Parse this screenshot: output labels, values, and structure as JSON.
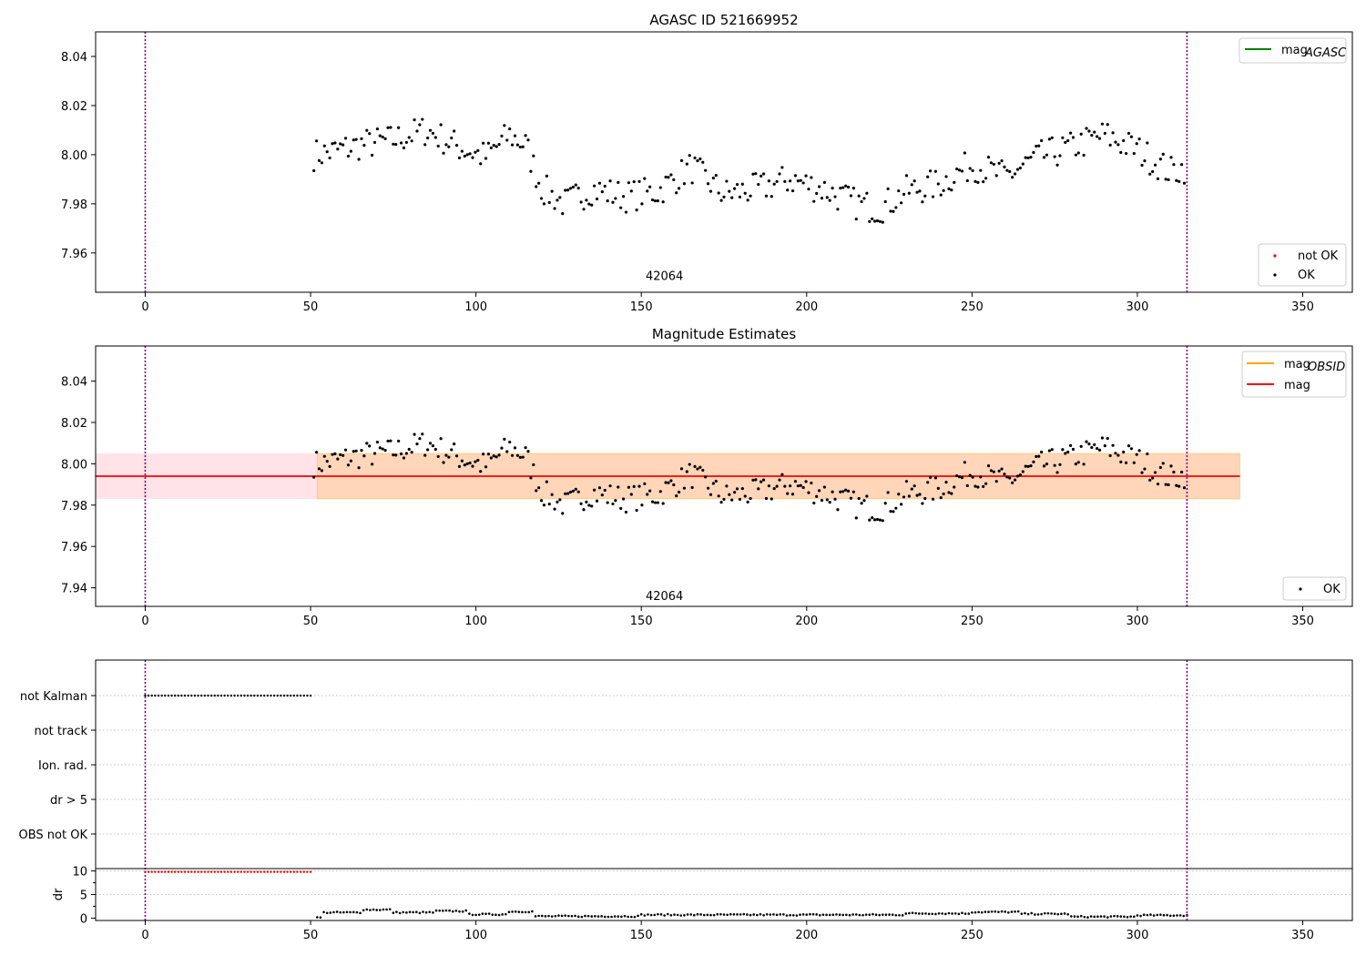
{
  "chart_data": [
    {
      "type": "scatter",
      "title": "AGASC ID 521669952",
      "xlim": [
        -15,
        365
      ],
      "ylim": [
        7.944,
        8.05
      ],
      "xticks": [
        0,
        50,
        100,
        150,
        200,
        250,
        300,
        350
      ],
      "yticks": [
        7.96,
        7.98,
        8.0,
        8.02,
        8.04
      ],
      "ytick_labels": [
        "7.96",
        "7.98",
        "8.00",
        "8.02",
        "8.04"
      ],
      "vlines": [
        0,
        315
      ],
      "annotation": {
        "text": "42064",
        "x": 157,
        "y": 7.949
      },
      "legend_lines": [
        {
          "label": "mag",
          "sub": "AGASC",
          "color": "#008000"
        }
      ],
      "legend_points": [
        {
          "label": "not OK",
          "color": "#ff0000"
        },
        {
          "label": "OK",
          "color": "#000000"
        }
      ],
      "series": [
        {
          "name": "OK",
          "color": "#000000",
          "x": [],
          "y": []
        }
      ]
    },
    {
      "type": "scatter",
      "title": "Magnitude Estimates",
      "xlim": [
        -15,
        365
      ],
      "ylim": [
        7.931,
        8.057
      ],
      "xticks": [
        0,
        50,
        100,
        150,
        200,
        250,
        300,
        350
      ],
      "yticks": [
        7.94,
        7.96,
        7.98,
        8.0,
        8.02,
        8.04
      ],
      "ytick_labels": [
        "7.94",
        "7.96",
        "7.98",
        "8.00",
        "8.02",
        "8.04"
      ],
      "vlines": [
        0,
        315
      ],
      "mag_line": 7.994,
      "band_pink": {
        "x": [
          -15,
          331
        ],
        "y": [
          7.983,
          8.005
        ]
      },
      "band_orange": {
        "x": [
          52,
          331
        ],
        "y": [
          7.983,
          8.005
        ]
      },
      "annotation": {
        "text": "42064",
        "x": 157,
        "y": 7.934
      },
      "legend_lines": [
        {
          "label": "mag",
          "sub": "OBSID",
          "color": "#ffa500"
        },
        {
          "label": "mag",
          "sub": "",
          "color": "#ff0000"
        }
      ],
      "legend_points": [
        {
          "label": "OK",
          "color": "#000000"
        }
      ],
      "series": [
        {
          "name": "OK",
          "color": "#000000",
          "x": [],
          "y": []
        }
      ]
    },
    {
      "type": "scatter",
      "xlim": [
        -15,
        365
      ],
      "categories": [
        "not Kalman",
        "not track",
        "Ion. rad.",
        "dr > 5",
        "OBS not OK"
      ],
      "flag_not_kalman_x": [
        0,
        50
      ],
      "vlines": [
        0,
        315
      ]
    },
    {
      "type": "scatter",
      "xlim": [
        -15,
        365
      ],
      "ylim": [
        -0.5,
        10.5
      ],
      "ylabel": "dr",
      "xticks": [
        0,
        50,
        100,
        150,
        200,
        250,
        300,
        350
      ],
      "yticks": [
        0,
        5,
        10
      ],
      "ytick_labels": [
        "0",
        "5",
        "10"
      ],
      "vlines": [
        0,
        315
      ],
      "series": [
        {
          "name": "dr",
          "color": "#000000",
          "x": [],
          "y": []
        },
        {
          "name": "dr clipped",
          "color": "#ff0000",
          "x": [
            0,
            50
          ],
          "y": [
            9.8,
            9.8
          ]
        }
      ]
    }
  ]
}
